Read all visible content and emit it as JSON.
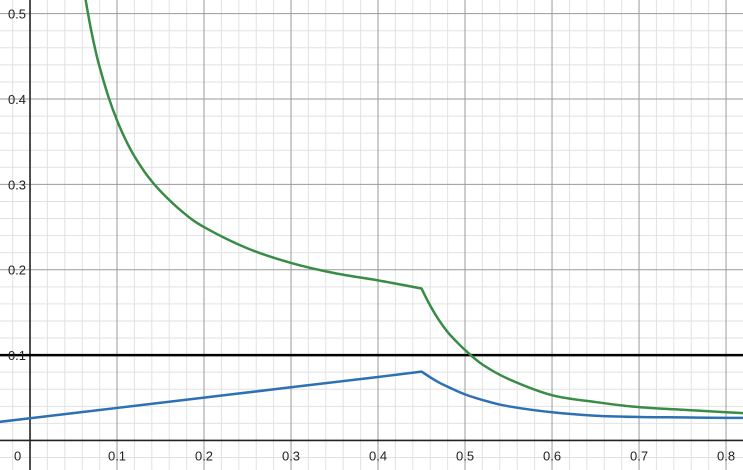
{
  "chart_data": {
    "type": "line",
    "title": "",
    "xlabel": "",
    "ylabel": "",
    "xlim": [
      -0.0345,
      0.8195
    ],
    "ylim": [
      -0.0346,
      0.516
    ],
    "grid": true,
    "major_step": 0.1,
    "minor_step": 0.02,
    "x_tick_labels": [
      "0",
      "0.1",
      "0.2",
      "0.3",
      "0.4",
      "0.5",
      "0.6",
      "0.7",
      "0.8"
    ],
    "y_tick_labels": [
      "0.1",
      "0.2",
      "0.3",
      "0.4",
      "0.5"
    ],
    "horizontal_line": {
      "y": 0.1,
      "color": "#000000"
    },
    "series": [
      {
        "color": "#388c46",
        "x": [
          0.058,
          0.062,
          0.066,
          0.07,
          0.075,
          0.08,
          0.09,
          0.1,
          0.11,
          0.12,
          0.135,
          0.15,
          0.175,
          0.2,
          0.25,
          0.3,
          0.35,
          0.4,
          0.45,
          0.46,
          0.47,
          0.48,
          0.49,
          0.5,
          0.52,
          0.55,
          0.6,
          0.65,
          0.7,
          0.75,
          0.8,
          0.82
        ],
        "y": [
          0.556,
          0.528,
          0.504,
          0.482,
          0.458,
          0.4375,
          0.403,
          0.375,
          0.352,
          0.333,
          0.31,
          0.292,
          0.268,
          0.25,
          0.225,
          0.208,
          0.196,
          0.1875,
          0.178,
          0.158,
          0.141,
          0.127,
          0.116,
          0.106,
          0.089,
          0.072,
          0.053,
          0.045,
          0.039,
          0.036,
          0.033,
          0.032
        ]
      },
      {
        "color": "#2d70b3",
        "x": [
          -0.035,
          0,
          0.1,
          0.2,
          0.3,
          0.4,
          0.45,
          0.46,
          0.47,
          0.48,
          0.5,
          0.525,
          0.55,
          0.6,
          0.65,
          0.7,
          0.75,
          0.8,
          0.82
        ],
        "y": [
          0.0218,
          0.026,
          0.0381,
          0.0502,
          0.0623,
          0.0744,
          0.0807,
          0.074,
          0.068,
          0.063,
          0.054,
          0.046,
          0.04,
          0.033,
          0.029,
          0.0275,
          0.027,
          0.0265,
          0.0265
        ]
      }
    ]
  }
}
